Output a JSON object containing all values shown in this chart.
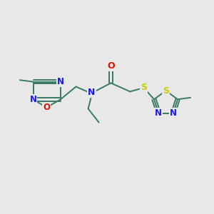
{
  "bg_color": "#e8e8e8",
  "bond_color": "#3a7a65",
  "N_color": "#1a1aee",
  "O_color": "#dd1100",
  "S_color": "#cccc00",
  "fig_width": 3.0,
  "fig_height": 3.0,
  "dpi": 100,
  "xlim": [
    0,
    10
  ],
  "ylim": [
    0,
    10
  ]
}
